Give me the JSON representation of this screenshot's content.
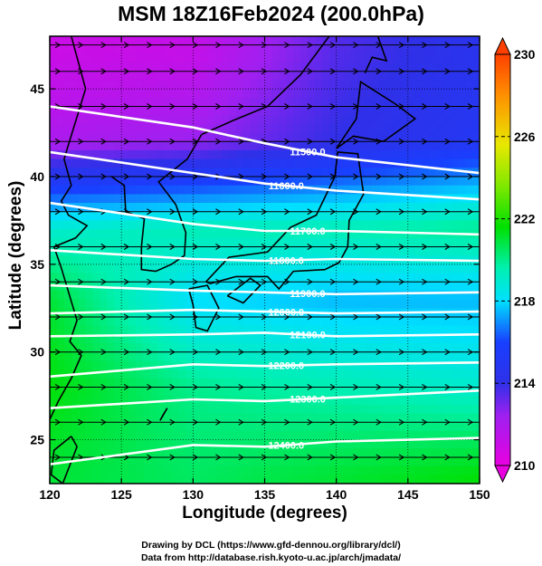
{
  "title": "MSM 18Z16Feb2024 (200.0hPa)",
  "footer": {
    "line1": "Drawing by DCL (https://www.gfd-dennou.org/library/dcl/)",
    "line2": "Data from http://database.rish.kyoto-u.ac.jp/arch/jmadata/"
  },
  "chart_data": {
    "type": "heatmap",
    "title": "MSM 18Z16Feb2024 (200.0hPa)",
    "xlabel": "Longitude (degrees)",
    "ylabel": "Latitude  (degrees)",
    "xlim": [
      120,
      150
    ],
    "ylim": [
      22.5,
      48
    ],
    "x_ticks": [
      120,
      125,
      130,
      135,
      140,
      145,
      150
    ],
    "y_ticks": [
      25,
      30,
      35,
      40,
      45
    ],
    "colorbar": {
      "range": [
        210,
        230
      ],
      "ticks": [
        210,
        214,
        218,
        222,
        226,
        230
      ],
      "stops": [
        "#e800e0",
        "#a020f0",
        "#3030e8",
        "#1840ff",
        "#00e0ff",
        "#00f0b0",
        "#00e000",
        "#80e800",
        "#e8e800",
        "#ff9000",
        "#ff4000"
      ]
    },
    "field_sketch": {
      "note_values": "approximate field value (colorbar units) at latitude rows",
      "rows": [
        {
          "lat": 47,
          "values_by_lon": {
            "120": 211.0,
            "130": 211.2,
            "140": 213.5,
            "150": 214.5
          }
        },
        {
          "lat": 42,
          "values_by_lon": {
            "120": 212.0,
            "130": 212.5,
            "140": 214.0,
            "150": 215.0
          }
        },
        {
          "lat": 37,
          "values_by_lon": {
            "120": 219.0,
            "130": 219.5,
            "140": 219.5,
            "150": 220.0
          }
        },
        {
          "lat": 33,
          "values_by_lon": {
            "120": 221.0,
            "130": 218.0,
            "140": 217.5,
            "150": 217.5
          }
        },
        {
          "lat": 28,
          "values_by_lon": {
            "120": 221.5,
            "130": 220.0,
            "140": 219.5,
            "150": 219.0
          }
        },
        {
          "lat": 23,
          "values_by_lon": {
            "120": 221.0,
            "130": 220.5,
            "140": 221.0,
            "150": 221.5
          }
        }
      ]
    },
    "contours": [
      {
        "label": "11500.0",
        "lat_at_lon": {
          "120": 44.0,
          "130": 42.8,
          "135": 41.9,
          "140": 41.1,
          "150": 40.2
        }
      },
      {
        "label": "11600.0",
        "lat_at_lon": {
          "120": 41.4,
          "130": 40.2,
          "135": 39.6,
          "140": 39.2,
          "150": 38.7
        }
      },
      {
        "label": "11700.0",
        "lat_at_lon": {
          "120": 38.5,
          "130": 37.3,
          "135": 36.9,
          "140": 36.9,
          "150": 36.7
        }
      },
      {
        "label": "11800.0",
        "lat_at_lon": {
          "120": 35.8,
          "130": 35.3,
          "135": 35.2,
          "140": 35.3,
          "150": 35.2
        }
      },
      {
        "label": "11900.0",
        "lat_at_lon": {
          "120": 33.8,
          "130": 33.5,
          "135": 33.4,
          "140": 33.3,
          "150": 33.4
        }
      },
      {
        "label": "12000.0",
        "lat_at_lon": {
          "120": 32.2,
          "130": 32.4,
          "135": 32.3,
          "140": 32.2,
          "150": 32.3
        }
      },
      {
        "label": "12100.0",
        "lat_at_lon": {
          "120": 30.9,
          "130": 31.0,
          "135": 31.1,
          "140": 30.9,
          "150": 31.0
        }
      },
      {
        "label": "12200.0",
        "lat_at_lon": {
          "120": 28.6,
          "130": 29.3,
          "135": 29.2,
          "140": 29.3,
          "150": 29.4
        }
      },
      {
        "label": "12300.0",
        "lat_at_lon": {
          "120": 26.8,
          "130": 27.3,
          "135": 27.2,
          "140": 27.4,
          "150": 27.8
        }
      },
      {
        "label": "12400.0",
        "lat_at_lon": {
          "120": 23.6,
          "130": 24.7,
          "135": 24.6,
          "140": 24.9,
          "150": 25.1
        }
      }
    ],
    "wind_vectors": {
      "direction": "west to east (eastward)",
      "rows_lat": [
        24,
        26,
        28,
        30,
        32,
        34,
        36,
        38,
        40,
        42,
        44,
        46,
        47.5
      ]
    },
    "coastlines": "East Asia (China coast, Korea, Japan, Taiwan, Sakhalin)"
  }
}
